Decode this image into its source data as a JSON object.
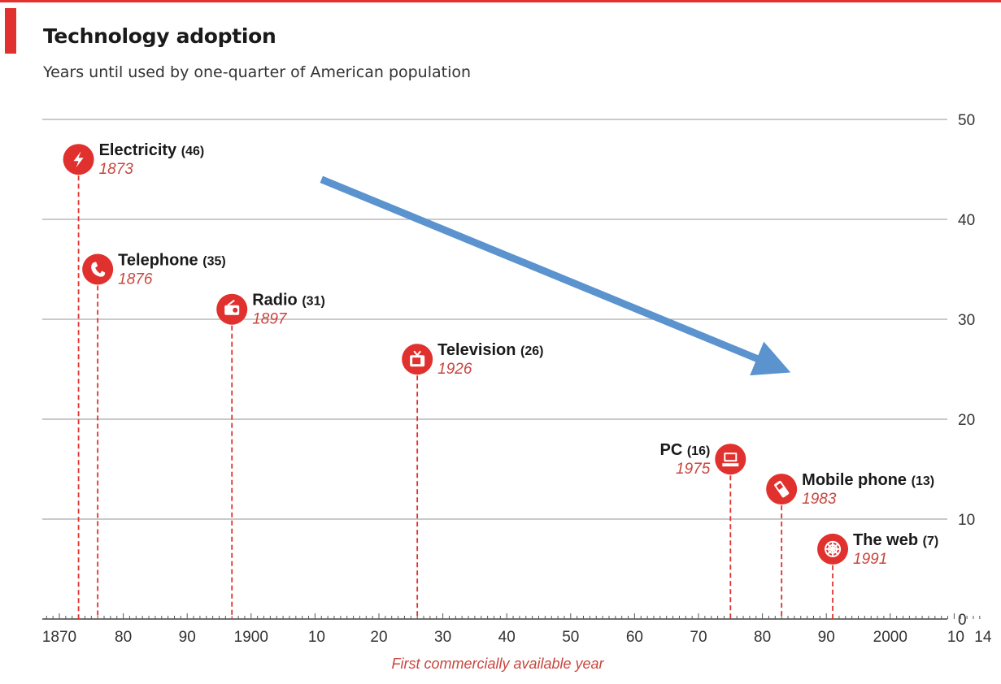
{
  "header": {
    "title": "Technology adoption",
    "subtitle": "Years until used by one-quarter of American population"
  },
  "colors": {
    "accent": "#e0312e",
    "label_red": "#c8463e",
    "grid": "#b9b9b9",
    "arrow": "#5b93cf"
  },
  "chart_data": {
    "type": "scatter",
    "title": "Technology adoption",
    "subtitle": "Years until used by one-quarter of American population",
    "xlabel": "First commercially available year",
    "ylabel": "",
    "xlim": [
      1867,
      2014
    ],
    "ylim": [
      0,
      50
    ],
    "x_ticks": [
      {
        "value": 1870,
        "label": "1870"
      },
      {
        "value": 1880,
        "label": "80"
      },
      {
        "value": 1890,
        "label": "90"
      },
      {
        "value": 1900,
        "label": "1900"
      },
      {
        "value": 1910,
        "label": "10"
      },
      {
        "value": 1920,
        "label": "20"
      },
      {
        "value": 1930,
        "label": "30"
      },
      {
        "value": 1940,
        "label": "40"
      },
      {
        "value": 1950,
        "label": "50"
      },
      {
        "value": 1960,
        "label": "60"
      },
      {
        "value": 1970,
        "label": "70"
      },
      {
        "value": 1980,
        "label": "80"
      },
      {
        "value": 1990,
        "label": "90"
      },
      {
        "value": 2000,
        "label": "2000"
      },
      {
        "value": 2010,
        "label": "10"
      },
      {
        "value": 2014,
        "label": "14"
      }
    ],
    "y_ticks": [
      0,
      10,
      20,
      30,
      40,
      50
    ],
    "grid": true,
    "y_axis_side": "right",
    "points": [
      {
        "name": "Electricity",
        "value_label": "(46)",
        "year_label": "1873",
        "x": 1873,
        "y": 46,
        "icon": "lightning-icon",
        "label_side": "right"
      },
      {
        "name": "Telephone",
        "value_label": "(35)",
        "year_label": "1876",
        "x": 1876,
        "y": 35,
        "icon": "telephone-icon",
        "label_side": "right"
      },
      {
        "name": "Radio",
        "value_label": "(31)",
        "year_label": "1897",
        "x": 1897,
        "y": 31,
        "icon": "radio-icon",
        "label_side": "right"
      },
      {
        "name": "Television",
        "value_label": "(26)",
        "year_label": "1926",
        "x": 1926,
        "y": 26,
        "icon": "television-icon",
        "label_side": "right"
      },
      {
        "name": "PC",
        "value_label": "(16)",
        "year_label": "1975",
        "x": 1975,
        "y": 16,
        "icon": "computer-icon",
        "label_side": "left"
      },
      {
        "name": "Mobile phone",
        "value_label": "(13)",
        "year_label": "1983",
        "x": 1983,
        "y": 13,
        "icon": "mobile-phone-icon",
        "label_side": "right"
      },
      {
        "name": "The web",
        "value_label": "(7)",
        "year_label": "1991",
        "x": 1991,
        "y": 7,
        "icon": "web-icon",
        "label_side": "right"
      }
    ],
    "annotation_arrow": {
      "from": [
        1911,
        44
      ],
      "to": [
        1983,
        25
      ],
      "color": "#5b93cf"
    }
  }
}
